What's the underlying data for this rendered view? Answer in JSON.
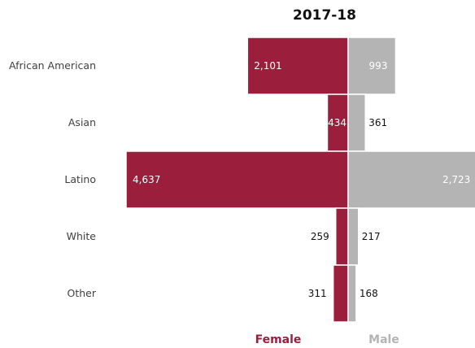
{
  "chart_data": {
    "type": "bar",
    "orientation": "horizontal",
    "layout": "diverging",
    "title": "2017-18",
    "categories": [
      "African American",
      "Asian",
      "Latino",
      "White",
      "Other"
    ],
    "series": [
      {
        "name": "Female",
        "direction": "left",
        "values": [
          2101,
          434,
          4637,
          259,
          311
        ],
        "labels": [
          "2,101",
          "434",
          "4,637",
          "259",
          "311"
        ],
        "color": "#9b1f3c"
      },
      {
        "name": "Male",
        "direction": "right",
        "values": [
          993,
          361,
          2723,
          217,
          168
        ],
        "labels": [
          "993",
          "361",
          "2,723",
          "217",
          "168"
        ],
        "color": "#b4b4b4"
      }
    ],
    "legend_position": "bottom",
    "grid": false
  }
}
